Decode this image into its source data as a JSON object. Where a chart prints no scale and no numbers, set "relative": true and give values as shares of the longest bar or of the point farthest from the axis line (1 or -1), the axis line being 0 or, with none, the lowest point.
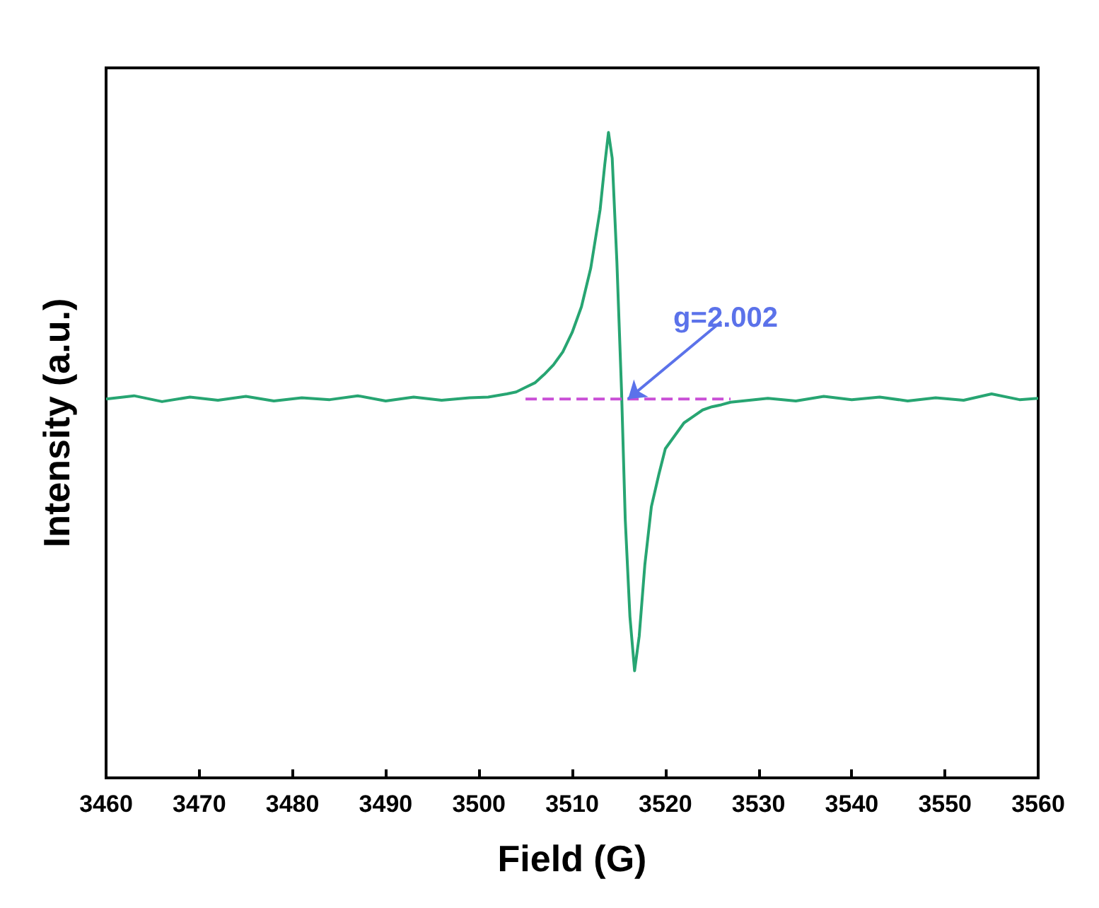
{
  "chart_data": {
    "type": "line",
    "relative": true,
    "xlabel": "Field (G)",
    "ylabel": "Intensity (a.u.)",
    "xlim": [
      3460,
      3560
    ],
    "xticks": [
      3460,
      3470,
      3480,
      3490,
      3500,
      3510,
      3520,
      3530,
      3540,
      3550,
      3560
    ],
    "tick_labels": "x",
    "grid": false,
    "marker": "none",
    "annotations": [
      {
        "text": "g=2.002",
        "x": 3516,
        "y": 0.587
      }
    ],
    "series": [
      {
        "color": "#27a572",
        "line_style": "solid",
        "x": [
          3460,
          3463,
          3466,
          3469,
          3472,
          3475,
          3478,
          3481,
          3484,
          3487,
          3490,
          3493,
          3496,
          3499,
          3501,
          3503,
          3504,
          3505,
          3506,
          3507,
          3508,
          3509,
          3510,
          3511,
          3512,
          3513,
          3513.5,
          3513.9,
          3514.3,
          3514.8,
          3515.3,
          3515.7,
          3516.2,
          3516.7,
          3517.2,
          3517.8,
          3518.5,
          3519.3,
          3520,
          3521,
          3522,
          3523,
          3524,
          3525,
          3526,
          3527,
          3529,
          3531,
          3534,
          3537,
          3540,
          3543,
          3546,
          3549,
          3552,
          3555,
          3558,
          3560
        ],
        "values": [
          0.587,
          0.592,
          0.583,
          0.59,
          0.585,
          0.591,
          0.584,
          0.589,
          0.586,
          0.592,
          0.584,
          0.59,
          0.585,
          0.589,
          0.59,
          0.595,
          0.598,
          0.605,
          0.612,
          0.625,
          0.64,
          0.66,
          0.69,
          0.73,
          0.79,
          0.88,
          0.95,
          1,
          0.96,
          0.8,
          0.6,
          0.4,
          0.25,
          0.166,
          0.22,
          0.33,
          0.42,
          0.47,
          0.51,
          0.53,
          0.55,
          0.56,
          0.57,
          0.575,
          0.578,
          0.582,
          0.585,
          0.588,
          0.584,
          0.591,
          0.586,
          0.59,
          0.584,
          0.589,
          0.585,
          0.595,
          0.586,
          0.588
        ]
      },
      {
        "type": "line",
        "color": "#c94fd6",
        "line_style": "dashed",
        "x": [
          3505,
          3527
        ],
        "values": [
          0.587,
          0.587
        ]
      }
    ]
  }
}
